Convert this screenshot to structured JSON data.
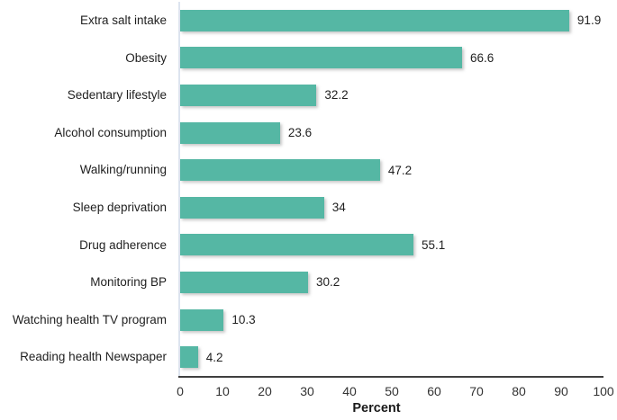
{
  "chart_data": {
    "type": "bar",
    "orientation": "horizontal",
    "title": "",
    "categories": [
      "Extra salt intake",
      "Obesity",
      "Sedentary lifestyle",
      "Alcohol consumption",
      "Walking/running",
      "Sleep deprivation",
      "Drug adherence",
      "Monitoring BP",
      "Watching health TV program",
      "Reading health Newspaper"
    ],
    "values": [
      91.9,
      66.6,
      32.2,
      23.6,
      47.2,
      34,
      55.1,
      30.2,
      10.3,
      4.2
    ],
    "value_labels": [
      "91.9",
      "66.6",
      "32.2",
      "23.6",
      "47.2",
      "34",
      "55.1",
      "30.2",
      "10.3",
      "4.2"
    ],
    "xlabel": "Percent",
    "ylabel": "",
    "xlim": [
      0,
      100
    ],
    "x_ticks": [
      "0",
      "10",
      "20",
      "30",
      "40",
      "50",
      "60",
      "70",
      "80",
      "90",
      "100"
    ],
    "grid": "none",
    "legend_position": "none",
    "colors": {
      "bar": "#55b7a4",
      "axis_line": "#3f3f3f",
      "baseline": "#dde4ef",
      "text": "#262626",
      "background": "#ffffff"
    }
  }
}
